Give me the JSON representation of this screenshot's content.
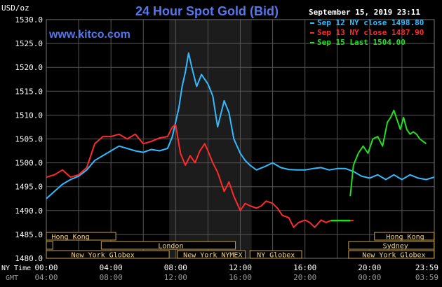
{
  "chart_data": {
    "type": "line",
    "title": "24 Hour Spot Gold (Bid)",
    "watermark": "www.kitco.com",
    "date_stamp": "September 15, 2019 23:11",
    "yunit": "USD/oz",
    "ylim": [
      1480.0,
      1530.0
    ],
    "yticks": [
      "1530.0",
      "1525.0",
      "1520.0",
      "1515.0",
      "1510.0",
      "1505.0",
      "1500.0",
      "1495.0",
      "1490.0",
      "1485.0",
      "1480.0"
    ],
    "xlim": [
      0,
      24
    ],
    "x_unit": "hours (NY time)",
    "xticks_ny": [
      "00:00",
      "04:00",
      "08:00",
      "12:00",
      "16:00",
      "20:00",
      "23:59"
    ],
    "xticks_gmt": [
      "04:00",
      "08:00",
      "12:00",
      "16:00",
      "20:00",
      "00:00",
      "03:59"
    ],
    "x_row_labels": {
      "ny": "NY Time",
      "gmt": "GMT"
    },
    "grid": true,
    "highlight_band": [
      7.6,
      12.7
    ],
    "legend_position": "top-right",
    "series": [
      {
        "name": "Sep 12 NY close 1498.80",
        "color": "#33bbff",
        "x": [
          0,
          0.5,
          1,
          1.5,
          2,
          2.5,
          3,
          3.5,
          4,
          4.5,
          5,
          5.5,
          6,
          6.5,
          7,
          7.5,
          7.8,
          8,
          8.2,
          8.4,
          8.6,
          8.8,
          9,
          9.3,
          9.6,
          10,
          10.3,
          10.6,
          11,
          11.3,
          11.6,
          12,
          12.3,
          12.6,
          13,
          13.5,
          14,
          14.5,
          15,
          15.5,
          16,
          16.5,
          17,
          17.5,
          18,
          18.5,
          19,
          19.5,
          20,
          20.5,
          21,
          21.5,
          22,
          22.5,
          23,
          23.5,
          23.99
        ],
        "values": [
          1492.5,
          1494,
          1495.5,
          1496.5,
          1497.2,
          1498.5,
          1500.5,
          1501.5,
          1502.5,
          1503.5,
          1503.0,
          1502.5,
          1502.2,
          1502.8,
          1502.5,
          1503.0,
          1505.5,
          1508.5,
          1511.5,
          1516.0,
          1519.0,
          1523.0,
          1520.0,
          1516.0,
          1518.5,
          1516.5,
          1514.0,
          1507.5,
          1513.0,
          1510.5,
          1505.0,
          1502.0,
          1500.5,
          1499.5,
          1498.5,
          1499.2,
          1500.0,
          1499.0,
          1498.6,
          1498.5,
          1498.5,
          1498.8,
          1499.0,
          1498.5,
          1498.8,
          1498.8,
          1498.2,
          1497.2,
          1496.8,
          1497.5,
          1496.5,
          1497.5,
          1496.5,
          1497.5,
          1496.8,
          1496.5,
          1497.0
        ]
      },
      {
        "name": "Sep 13 NY close 1487.90",
        "color": "#ff2a2a",
        "x": [
          0,
          0.5,
          1,
          1.5,
          2,
          2.5,
          3,
          3.5,
          4,
          4.5,
          5,
          5.5,
          6,
          6.5,
          7,
          7.5,
          7.8,
          8,
          8.3,
          8.6,
          8.9,
          9.2,
          9.5,
          9.8,
          10,
          10.3,
          10.6,
          11,
          11.3,
          11.6,
          12,
          12.3,
          12.6,
          13,
          13.3,
          13.6,
          14,
          14.3,
          14.6,
          15,
          15.3,
          15.6,
          16,
          16.3,
          16.6,
          17,
          17.3,
          17.6,
          18,
          18.3,
          18.6,
          19
        ],
        "values": [
          1497.0,
          1497.5,
          1498.5,
          1497.0,
          1497.5,
          1499.0,
          1504.0,
          1505.5,
          1505.5,
          1506.0,
          1505.0,
          1506.0,
          1504.0,
          1504.5,
          1505.2,
          1505.5,
          1507.5,
          1508.0,
          1502.0,
          1499.5,
          1501.5,
          1500.0,
          1502.5,
          1504.0,
          1502.5,
          1500.0,
          1498.0,
          1494.0,
          1496.0,
          1493.0,
          1490.0,
          1491.5,
          1491.0,
          1490.5,
          1491.0,
          1492.0,
          1491.5,
          1490.5,
          1489.0,
          1488.5,
          1486.5,
          1487.5,
          1488.0,
          1487.5,
          1486.5,
          1488.0,
          1487.5,
          1487.9,
          1487.9,
          1487.9,
          1487.9,
          1487.9
        ]
      },
      {
        "name": "Sep 15 Last 1504.00",
        "color": "#22dd22",
        "x": [
          18.8,
          19,
          19.3,
          19.6,
          19.9,
          20.2,
          20.5,
          20.8,
          21.1,
          21.3,
          21.5,
          21.7,
          21.9,
          22.1,
          22.3,
          22.5,
          22.7,
          22.9,
          23.1,
          23.3,
          23.5
        ],
        "values": [
          1493.0,
          1499.5,
          1502.0,
          1503.5,
          1502.0,
          1505.0,
          1505.5,
          1503.5,
          1508.5,
          1509.5,
          1511.0,
          1509.0,
          1507.0,
          1509.5,
          1507.0,
          1506.0,
          1506.5,
          1506.0,
          1505.0,
          1504.5,
          1504.0
        ]
      }
    ],
    "flat_segment": {
      "x": [
        17.6,
        18.8
      ],
      "value": 1487.9,
      "color": "#22dd22"
    },
    "sessions": [
      {
        "name": "Hong Kong",
        "start": 0,
        "end": 4.3,
        "row": 0,
        "label_x": 1.5
      },
      {
        "name": "Hong Kong",
        "start": 20.3,
        "end": 23.99,
        "row": 0,
        "label_x": 22.2
      },
      {
        "name": "London",
        "start": 3.4,
        "end": 11.7,
        "row": 1,
        "label_x": 7.7
      },
      {
        "name": "Sydney",
        "start": 18.7,
        "end": 23.99,
        "row": 1,
        "label_x": 21.6
      },
      {
        "name": "",
        "start": 0,
        "end": 0.4,
        "row": 1,
        "label_x": 0
      },
      {
        "name": "New York Globex",
        "start": 0,
        "end": 7.6,
        "row": 2,
        "label_x": 3.5
      },
      {
        "name": "New York NYMEX",
        "start": 8.1,
        "end": 12.3,
        "row": 2,
        "label_x": 10.3
      },
      {
        "name": "NY Globex",
        "start": 12.6,
        "end": 15.8,
        "row": 2,
        "label_x": 14.2
      },
      {
        "name": "New York Globex",
        "start": 18.7,
        "end": 23.99,
        "row": 2,
        "label_x": 21.5
      }
    ]
  },
  "colors": {
    "background": "#000000",
    "grid": "#555555",
    "axis_text": "#ffffff",
    "title": "#5577ee",
    "watermark": "#5577ee",
    "band": "#1c1c1c",
    "session_fill": "#000000",
    "session_stroke": "#c8a24a",
    "session_text": "#f0d58a",
    "gmt_text": "#999999"
  }
}
